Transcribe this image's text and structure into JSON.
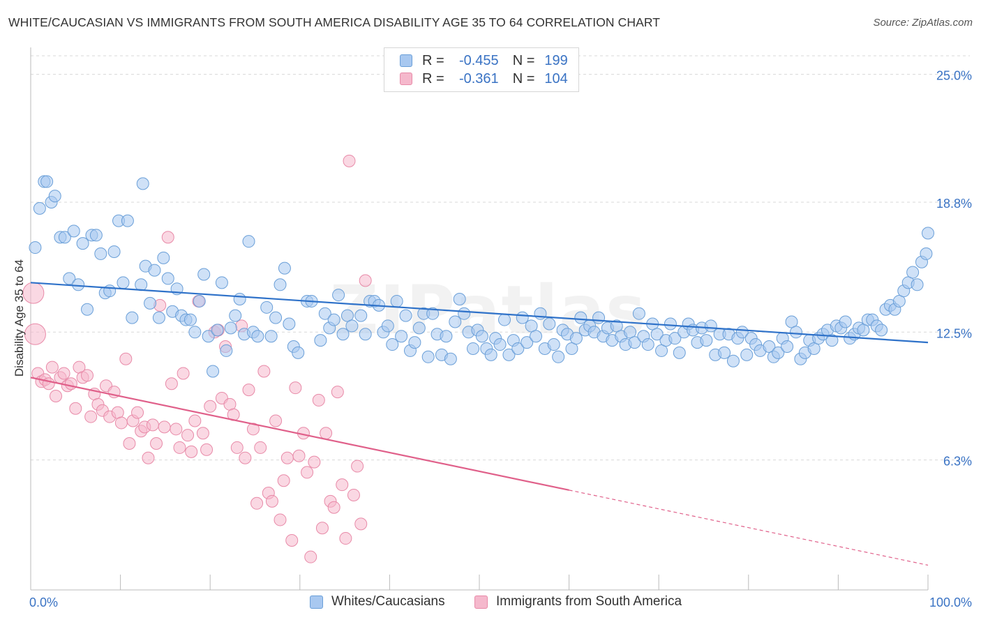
{
  "title": "WHITE/CAUCASIAN VS IMMIGRANTS FROM SOUTH AMERICA DISABILITY AGE 35 TO 64 CORRELATION CHART",
  "source": "Source: ZipAtlas.com",
  "watermark": "ZIPatlas",
  "colors": {
    "blue_fill": "#a8c8f0",
    "blue_stroke": "#6a9fd8",
    "blue_line": "#2f72c9",
    "pink_fill": "#f5b8cc",
    "pink_stroke": "#e88aa8",
    "pink_line": "#e0608a",
    "axis_text": "#3a73c4",
    "grid": "#d8d8d8"
  },
  "legend_top": [
    {
      "series": "Whites/Caucasians",
      "r_label": "R =",
      "r_value": "-0.455",
      "n_label": "N =",
      "n_value": "199"
    },
    {
      "series": "Immigrants from South America",
      "r_label": "R =",
      "r_value": "-0.361",
      "n_label": "N =",
      "n_value": "104"
    }
  ],
  "chart_data": {
    "type": "scatter",
    "title": "WHITE/CAUCASIAN VS IMMIGRANTS FROM SOUTH AMERICA DISABILITY AGE 35 TO 64 CORRELATION CHART",
    "xlabel": "",
    "ylabel": "Disability Age 35 to 64",
    "xlim": [
      0,
      100
    ],
    "ylim": [
      0,
      25.9
    ],
    "x_tick_labels": [
      "0.0%",
      "100.0%"
    ],
    "y_ticks": [
      6.3,
      12.5,
      18.8,
      25.0
    ],
    "y_tick_labels": [
      "6.3%",
      "12.5%",
      "18.8%",
      "25.0%"
    ],
    "grid": true,
    "legend": [
      "Whites/Caucasians",
      "Immigrants from South America"
    ],
    "series": [
      {
        "name": "Whites/Caucasians",
        "trend": {
          "x": [
            0,
            100
          ],
          "y": [
            14.9,
            12.0
          ],
          "solid_to": 100
        },
        "points": [
          [
            0.5,
            16.6
          ],
          [
            1,
            18.5
          ],
          [
            1.5,
            19.8
          ],
          [
            1.8,
            19.8
          ],
          [
            2.3,
            18.8
          ],
          [
            2.7,
            19.1
          ],
          [
            3.3,
            17.1
          ],
          [
            3.8,
            17.1
          ],
          [
            4.3,
            15.1
          ],
          [
            4.8,
            17.4
          ],
          [
            5.3,
            14.8
          ],
          [
            5.8,
            16.8
          ],
          [
            6.3,
            13.6
          ],
          [
            6.8,
            17.2
          ],
          [
            7.3,
            17.2
          ],
          [
            7.8,
            16.3
          ],
          [
            8.3,
            14.4
          ],
          [
            8.8,
            14.5
          ],
          [
            9.3,
            16.4
          ],
          [
            9.8,
            17.9
          ],
          [
            10.3,
            14.9
          ],
          [
            10.8,
            17.9
          ],
          [
            11.3,
            13.2
          ],
          [
            12.3,
            14.8
          ],
          [
            12.5,
            19.7
          ],
          [
            12.8,
            15.7
          ],
          [
            13.3,
            13.9
          ],
          [
            13.8,
            15.5
          ],
          [
            14.3,
            13.2
          ],
          [
            14.8,
            16.1
          ],
          [
            15.3,
            15.1
          ],
          [
            15.8,
            13.5
          ],
          [
            16.3,
            14.6
          ],
          [
            16.8,
            13.3
          ],
          [
            17.3,
            13.1
          ],
          [
            17.8,
            13.1
          ],
          [
            18.3,
            12.5
          ],
          [
            18.8,
            14.0
          ],
          [
            19.3,
            15.3
          ],
          [
            19.8,
            12.3
          ],
          [
            20.3,
            10.6
          ],
          [
            20.8,
            12.6
          ],
          [
            21.3,
            14.9
          ],
          [
            21.8,
            11.6
          ],
          [
            22.3,
            12.7
          ],
          [
            22.8,
            13.3
          ],
          [
            23.3,
            14.1
          ],
          [
            23.8,
            12.4
          ],
          [
            24.3,
            16.9
          ],
          [
            24.8,
            12.5
          ],
          [
            25.3,
            12.3
          ],
          [
            26.3,
            13.7
          ],
          [
            26.8,
            12.3
          ],
          [
            27.3,
            13.2
          ],
          [
            27.8,
            14.8
          ],
          [
            28.3,
            15.6
          ],
          [
            28.8,
            12.9
          ],
          [
            29.3,
            11.8
          ],
          [
            29.8,
            11.5
          ],
          [
            30.8,
            14.0
          ],
          [
            31.3,
            14.0
          ],
          [
            32.3,
            12.1
          ],
          [
            32.8,
            13.4
          ],
          [
            33.3,
            12.7
          ],
          [
            33.8,
            13.1
          ],
          [
            34.3,
            14.3
          ],
          [
            34.8,
            12.4
          ],
          [
            35.3,
            13.3
          ],
          [
            35.8,
            12.8
          ],
          [
            36.8,
            13.3
          ],
          [
            37.3,
            12.4
          ],
          [
            37.8,
            14.0
          ],
          [
            38.3,
            14.0
          ],
          [
            38.8,
            13.8
          ],
          [
            39.3,
            12.5
          ],
          [
            39.8,
            12.8
          ],
          [
            40.3,
            11.9
          ],
          [
            40.8,
            14.0
          ],
          [
            41.3,
            12.3
          ],
          [
            41.8,
            13.3
          ],
          [
            42.3,
            11.6
          ],
          [
            42.8,
            12.0
          ],
          [
            43.3,
            12.7
          ],
          [
            43.8,
            13.4
          ],
          [
            44.3,
            11.3
          ],
          [
            44.8,
            13.4
          ],
          [
            45.3,
            12.4
          ],
          [
            45.8,
            11.4
          ],
          [
            46.3,
            12.3
          ],
          [
            46.8,
            11.2
          ],
          [
            47.3,
            13.0
          ],
          [
            47.8,
            14.1
          ],
          [
            48.3,
            13.4
          ],
          [
            48.8,
            12.5
          ],
          [
            49.3,
            11.7
          ],
          [
            49.8,
            12.6
          ],
          [
            50.3,
            12.3
          ],
          [
            50.8,
            11.7
          ],
          [
            51.3,
            11.4
          ],
          [
            51.8,
            12.2
          ],
          [
            52.3,
            11.9
          ],
          [
            52.8,
            13.1
          ],
          [
            53.3,
            11.4
          ],
          [
            53.8,
            12.1
          ],
          [
            54.3,
            11.7
          ],
          [
            54.8,
            13.2
          ],
          [
            55.3,
            12.0
          ],
          [
            55.8,
            12.8
          ],
          [
            56.3,
            12.3
          ],
          [
            56.8,
            13.4
          ],
          [
            57.3,
            11.7
          ],
          [
            57.8,
            12.9
          ],
          [
            58.3,
            11.9
          ],
          [
            58.8,
            11.3
          ],
          [
            59.3,
            12.6
          ],
          [
            59.8,
            12.4
          ],
          [
            60.3,
            11.7
          ],
          [
            60.8,
            12.2
          ],
          [
            61.3,
            13.2
          ],
          [
            61.8,
            12.6
          ],
          [
            62.3,
            12.8
          ],
          [
            62.8,
            12.5
          ],
          [
            63.3,
            13.2
          ],
          [
            63.8,
            12.3
          ],
          [
            64.3,
            12.7
          ],
          [
            64.8,
            12.1
          ],
          [
            65.3,
            12.8
          ],
          [
            65.8,
            12.3
          ],
          [
            66.3,
            11.9
          ],
          [
            66.8,
            12.5
          ],
          [
            67.3,
            12.0
          ],
          [
            67.8,
            13.4
          ],
          [
            68.3,
            12.3
          ],
          [
            68.8,
            11.9
          ],
          [
            69.3,
            12.9
          ],
          [
            69.8,
            12.4
          ],
          [
            70.3,
            11.6
          ],
          [
            70.8,
            12.1
          ],
          [
            71.3,
            12.9
          ],
          [
            71.8,
            12.2
          ],
          [
            72.3,
            11.5
          ],
          [
            72.8,
            12.5
          ],
          [
            73.3,
            12.9
          ],
          [
            73.8,
            12.6
          ],
          [
            74.3,
            12.0
          ],
          [
            74.8,
            12.7
          ],
          [
            75.3,
            12.1
          ],
          [
            75.8,
            12.8
          ],
          [
            76.3,
            11.4
          ],
          [
            76.8,
            12.4
          ],
          [
            77.3,
            11.5
          ],
          [
            77.8,
            12.4
          ],
          [
            78.3,
            11.1
          ],
          [
            78.8,
            12.2
          ],
          [
            79.3,
            12.5
          ],
          [
            79.8,
            11.4
          ],
          [
            80.3,
            12.2
          ],
          [
            80.8,
            11.9
          ],
          [
            81.3,
            11.6
          ],
          [
            82.3,
            11.8
          ],
          [
            82.8,
            11.3
          ],
          [
            83.3,
            11.5
          ],
          [
            83.8,
            12.2
          ],
          [
            84.3,
            11.8
          ],
          [
            84.8,
            13.0
          ],
          [
            85.3,
            12.5
          ],
          [
            85.8,
            11.2
          ],
          [
            86.3,
            11.5
          ],
          [
            86.8,
            12.1
          ],
          [
            87.3,
            11.7
          ],
          [
            87.8,
            12.2
          ],
          [
            88.3,
            12.4
          ],
          [
            88.8,
            12.6
          ],
          [
            89.3,
            12.1
          ],
          [
            89.8,
            12.8
          ],
          [
            90.3,
            12.7
          ],
          [
            90.8,
            13.0
          ],
          [
            91.3,
            12.2
          ],
          [
            91.8,
            12.4
          ],
          [
            92.3,
            12.7
          ],
          [
            92.8,
            12.6
          ],
          [
            93.3,
            13.1
          ],
          [
            93.8,
            13.1
          ],
          [
            94.3,
            12.8
          ],
          [
            94.8,
            12.6
          ],
          [
            95.3,
            13.6
          ],
          [
            95.8,
            13.8
          ],
          [
            96.3,
            13.6
          ],
          [
            96.8,
            14.0
          ],
          [
            97.3,
            14.5
          ],
          [
            97.8,
            14.9
          ],
          [
            98.3,
            15.4
          ],
          [
            98.8,
            14.8
          ],
          [
            99.3,
            15.9
          ],
          [
            99.8,
            16.3
          ],
          [
            100,
            17.3
          ]
        ]
      },
      {
        "name": "Immigrants from South America",
        "trend": {
          "x": [
            0,
            100
          ],
          "y": [
            10.3,
            1.2
          ],
          "solid_to": 60
        },
        "points": [
          [
            0.3,
            14.4
          ],
          [
            0.5,
            12.4
          ],
          [
            0.8,
            10.5
          ],
          [
            1.2,
            10.1
          ],
          [
            1.6,
            10.2
          ],
          [
            2,
            10.0
          ],
          [
            2.4,
            10.8
          ],
          [
            2.8,
            9.4
          ],
          [
            3.3,
            10.3
          ],
          [
            3.7,
            10.5
          ],
          [
            4.1,
            9.9
          ],
          [
            4.5,
            10.0
          ],
          [
            5,
            8.8
          ],
          [
            5.4,
            10.8
          ],
          [
            5.8,
            10.3
          ],
          [
            6.3,
            10.4
          ],
          [
            6.7,
            8.4
          ],
          [
            7.1,
            9.5
          ],
          [
            7.5,
            9.0
          ],
          [
            8,
            8.7
          ],
          [
            8.4,
            9.9
          ],
          [
            8.8,
            8.4
          ],
          [
            9.3,
            9.6
          ],
          [
            9.7,
            8.6
          ],
          [
            10.1,
            8.1
          ],
          [
            10.6,
            11.2
          ],
          [
            11,
            7.1
          ],
          [
            11.4,
            8.2
          ],
          [
            11.9,
            8.6
          ],
          [
            12.3,
            7.7
          ],
          [
            12.7,
            7.9
          ],
          [
            13.1,
            6.4
          ],
          [
            13.6,
            8.0
          ],
          [
            14,
            7.1
          ],
          [
            14.4,
            13.8
          ],
          [
            14.9,
            7.9
          ],
          [
            15.3,
            17.1
          ],
          [
            15.7,
            10.0
          ],
          [
            16.2,
            7.8
          ],
          [
            16.6,
            6.9
          ],
          [
            17,
            10.5
          ],
          [
            17.5,
            7.5
          ],
          [
            17.9,
            6.7
          ],
          [
            18.3,
            8.2
          ],
          [
            18.7,
            14.0
          ],
          [
            19.2,
            7.6
          ],
          [
            19.6,
            6.8
          ],
          [
            20,
            8.9
          ],
          [
            20.5,
            12.5
          ],
          [
            20.9,
            12.6
          ],
          [
            21.3,
            9.3
          ],
          [
            21.7,
            11.8
          ],
          [
            22.2,
            9.0
          ],
          [
            22.6,
            8.5
          ],
          [
            23,
            6.9
          ],
          [
            23.5,
            12.8
          ],
          [
            23.9,
            6.4
          ],
          [
            24.3,
            9.7
          ],
          [
            24.8,
            7.8
          ],
          [
            25.2,
            4.2
          ],
          [
            25.6,
            6.9
          ],
          [
            26,
            10.6
          ],
          [
            26.5,
            4.7
          ],
          [
            26.9,
            4.3
          ],
          [
            27.3,
            8.2
          ],
          [
            27.8,
            3.4
          ],
          [
            28.2,
            5.3
          ],
          [
            28.6,
            6.4
          ],
          [
            29.1,
            2.4
          ],
          [
            29.5,
            9.8
          ],
          [
            29.9,
            6.5
          ],
          [
            30.4,
            7.6
          ],
          [
            30.8,
            5.7
          ],
          [
            31.2,
            1.6
          ],
          [
            31.6,
            6.2
          ],
          [
            32.1,
            9.2
          ],
          [
            32.5,
            3.0
          ],
          [
            32.9,
            7.6
          ],
          [
            33.4,
            4.3
          ],
          [
            33.8,
            4.0
          ],
          [
            34.2,
            9.6
          ],
          [
            34.7,
            5.1
          ],
          [
            35.1,
            2.5
          ],
          [
            35.5,
            20.8
          ],
          [
            36,
            4.6
          ],
          [
            36.4,
            6.0
          ],
          [
            36.8,
            3.2
          ],
          [
            37.3,
            15.0
          ]
        ]
      }
    ]
  }
}
